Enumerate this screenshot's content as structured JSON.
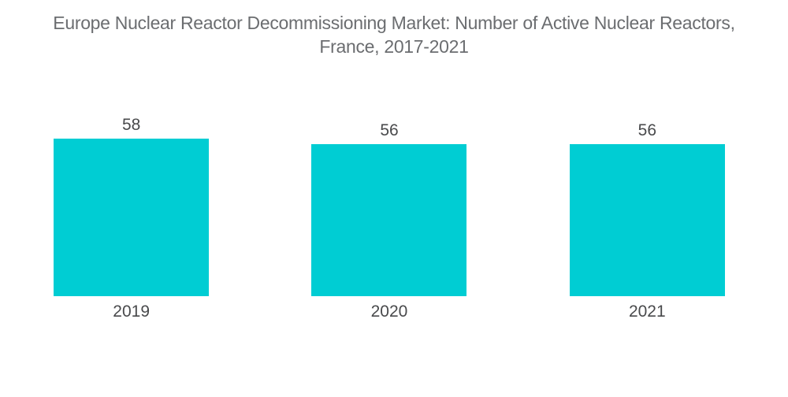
{
  "page": {
    "background": "#ffffff"
  },
  "chart_data": {
    "type": "bar",
    "title": "Europe Nuclear Reactor Decommissioning Market: Number of Active Nuclear Reactors, France, 2017-2021",
    "title_lines": [
      "Europe Nuclear Reactor Decommissioning Market: Number of Active Nuclear Reactors,",
      "France, 2017-2021"
    ],
    "categories": [
      "2019",
      "2020",
      "2021"
    ],
    "values": [
      58,
      56,
      56
    ],
    "data_labels": [
      58,
      56,
      56
    ],
    "xlabel": "",
    "ylabel": "",
    "ylim": [
      0,
      58
    ],
    "grid": false,
    "legend": false,
    "colors": {
      "bar": "#00cdd3",
      "title": "#6b6d70",
      "label": "#494a4c"
    }
  }
}
